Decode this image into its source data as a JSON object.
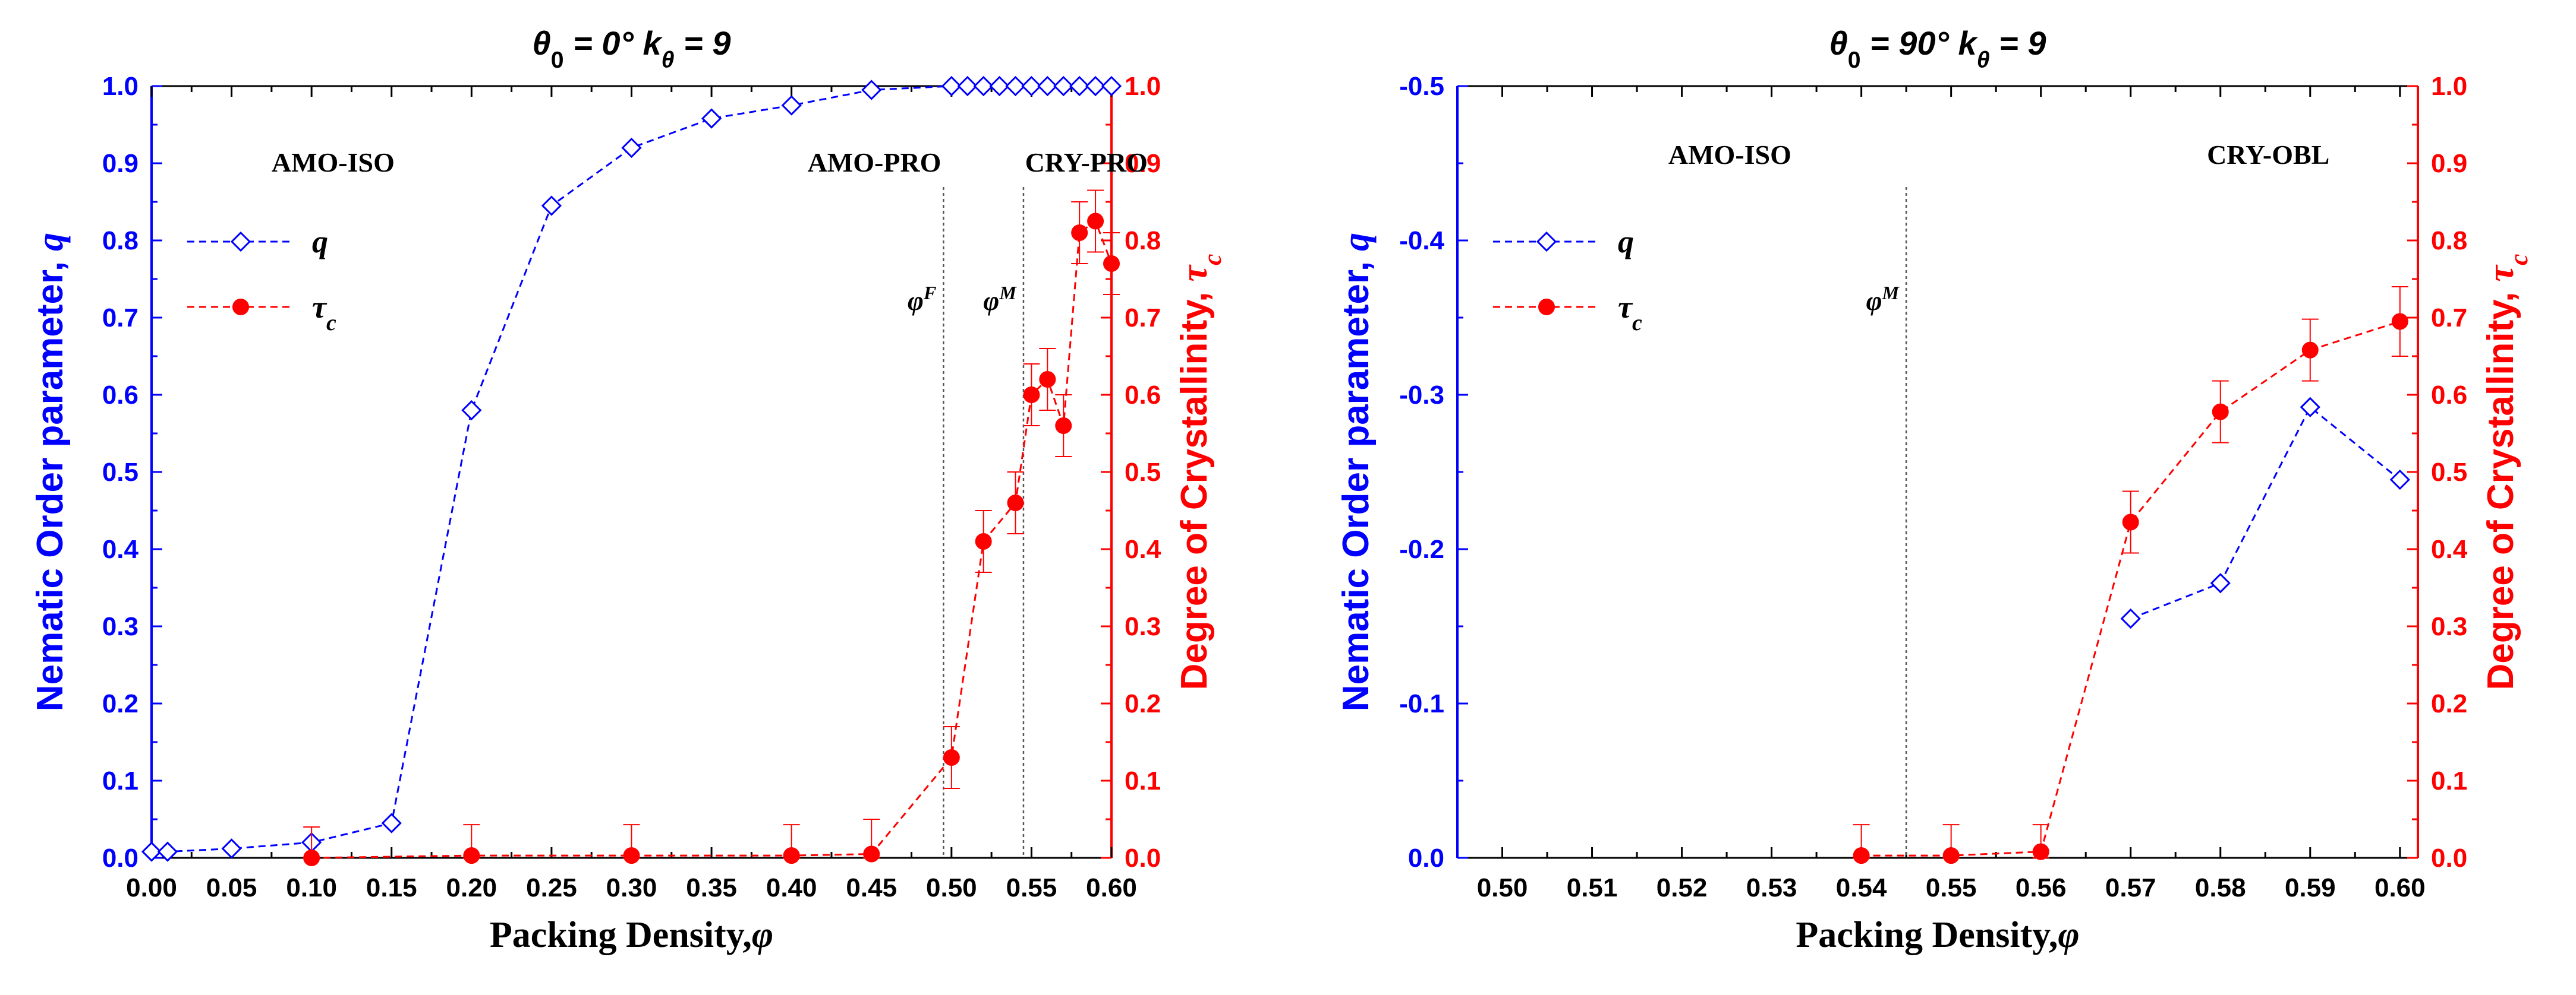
{
  "chart_data": [
    {
      "type": "line",
      "title": "θ0 = 0°  kθ = 9",
      "xlabel": "Packing Density,φ",
      "ylabel": "Nematic Order parameter, q",
      "y2label": "Degree of Crystallinity, τc",
      "xlim": [
        0,
        0.6
      ],
      "ylim": [
        0,
        1.0
      ],
      "y2lim": [
        0,
        1.0
      ],
      "x_ticks": [
        "0.00",
        "0.05",
        "0.10",
        "0.15",
        "0.20",
        "0.25",
        "0.30",
        "0.35",
        "0.40",
        "0.45",
        "0.50",
        "0.55",
        "0.60"
      ],
      "y_ticks": [
        "0.0",
        "0.1",
        "0.2",
        "0.3",
        "0.4",
        "0.5",
        "0.6",
        "0.7",
        "0.8",
        "0.9",
        "1.0"
      ],
      "y2_ticks": [
        "0.0",
        "0.1",
        "0.2",
        "0.3",
        "0.4",
        "0.5",
        "0.6",
        "0.7",
        "0.8",
        "0.9",
        "1.0"
      ],
      "series": [
        {
          "name": "q",
          "axis": "left",
          "color": "#0000ff",
          "marker": "diamond-open",
          "x": [
            0.0,
            0.01,
            0.05,
            0.1,
            0.15,
            0.2,
            0.25,
            0.3,
            0.35,
            0.4,
            0.45,
            0.5,
            0.51,
            0.52,
            0.53,
            0.54,
            0.55,
            0.56,
            0.57,
            0.58,
            0.59,
            0.6
          ],
          "y": [
            0.008,
            0.008,
            0.012,
            0.02,
            0.045,
            0.58,
            0.845,
            0.92,
            0.958,
            0.975,
            0.995,
            1.0,
            1.0,
            1.0,
            1.0,
            1.0,
            1.0,
            1.0,
            1.0,
            1.0,
            1.0,
            1.0
          ]
        },
        {
          "name": "τc",
          "axis": "right",
          "color": "#ff0000",
          "marker": "circle-filled",
          "x": [
            0.1,
            0.2,
            0.3,
            0.4,
            0.45,
            0.5,
            0.52,
            0.54,
            0.55,
            0.56,
            0.57,
            0.58,
            0.59,
            0.6
          ],
          "y": [
            0.0,
            0.003,
            0.003,
            0.003,
            0.005,
            0.13,
            0.41,
            0.46,
            0.6,
            0.62,
            0.56,
            0.81,
            0.825,
            0.77
          ],
          "err": [
            0.04,
            0.04,
            0.04,
            0.04,
            0.045,
            0.04,
            0.04,
            0.04,
            0.04,
            0.04,
            0.04,
            0.04,
            0.04,
            0.04
          ]
        }
      ],
      "vlines": [
        {
          "x": 0.495,
          "label": "φF"
        },
        {
          "x": 0.545,
          "label": "φM"
        }
      ],
      "regions": [
        {
          "label": "AMO-ISO",
          "x": 0.075,
          "y": 0.9
        },
        {
          "label": "AMO-PRO",
          "x": 0.41,
          "y": 0.9
        },
        {
          "label": "CRY-PRO",
          "x": 0.546,
          "y": 0.9
        }
      ],
      "legend": [
        {
          "label": "q",
          "series": "q"
        },
        {
          "label": "τc",
          "series": "τc"
        }
      ]
    },
    {
      "type": "line",
      "title": "θ0 = 90°  kθ = 9",
      "xlabel": "Packing Density,φ",
      "ylabel": "Nematic Order parameter, q",
      "y2label": "Degree of Crystallinity, τc",
      "xlim": [
        0.495,
        0.602
      ],
      "ylim": [
        0,
        -0.5
      ],
      "y2lim": [
        0,
        1.0
      ],
      "x_ticks": [
        "0.50",
        "0.51",
        "0.52",
        "0.53",
        "0.54",
        "0.55",
        "0.56",
        "0.57",
        "0.58",
        "0.59",
        "0.60"
      ],
      "y_ticks": [
        "0.0",
        "-0.1",
        "-0.2",
        "-0.3",
        "-0.4",
        "-0.5"
      ],
      "y2_ticks": [
        "0.0",
        "0.1",
        "0.2",
        "0.3",
        "0.4",
        "0.5",
        "0.6",
        "0.7",
        "0.8",
        "0.9",
        "1.0"
      ],
      "series": [
        {
          "name": "q",
          "axis": "left",
          "color": "#0000ff",
          "marker": "diamond-open",
          "x": [
            0.57,
            0.58,
            0.59,
            0.6
          ],
          "y": [
            -0.155,
            -0.178,
            -0.292,
            -0.245
          ]
        },
        {
          "name": "τc",
          "axis": "right",
          "color": "#ff0000",
          "marker": "circle-filled",
          "x": [
            0.54,
            0.55,
            0.56,
            0.57,
            0.58,
            0.59,
            0.6
          ],
          "y": [
            0.003,
            0.003,
            0.008,
            0.435,
            0.578,
            0.658,
            0.695
          ],
          "err": [
            0.04,
            0.04,
            0.035,
            0.04,
            0.04,
            0.04,
            0.045
          ]
        }
      ],
      "vlines": [
        {
          "x": 0.545,
          "label": "φM"
        }
      ],
      "regions": [
        {
          "label": "AMO-ISO",
          "x": 0.5185,
          "y": -0.455
        },
        {
          "label": "CRY-OBL",
          "x": 0.5785,
          "y": -0.455
        }
      ],
      "legend": [
        {
          "label": "q",
          "series": "q"
        },
        {
          "label": "τc",
          "series": "τc"
        }
      ]
    }
  ]
}
